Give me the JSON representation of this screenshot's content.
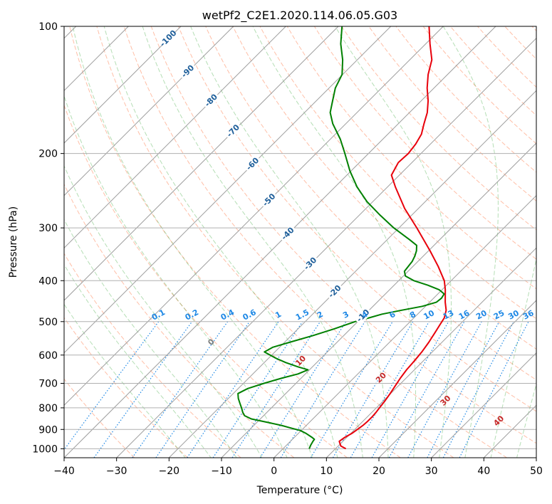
{
  "chart_data": {
    "type": "line",
    "title": "wetPf2_C2E1.2020.114.06.05.G03",
    "xlabel": "Temperature (°C)",
    "ylabel": "Pressure (hPa)",
    "xlim": [
      -40,
      50
    ],
    "ylim": [
      1050,
      100
    ],
    "yscale": "log",
    "skew": 45,
    "grid": true,
    "x_ticks": [
      -40,
      -30,
      -20,
      -10,
      0,
      10,
      20,
      30,
      40,
      50
    ],
    "y_ticks": [
      100,
      200,
      300,
      400,
      500,
      600,
      700,
      800,
      900,
      1000
    ],
    "colors": {
      "temperature": "#e8000b",
      "dewpoint": "#008000",
      "isotherm_labels": "#1f5f9a",
      "mixing_ratio": "#1e88e5",
      "moist_adiabat_labels": "#c62828",
      "zero_label": "#808080"
    },
    "series": [
      {
        "color": "#e8000b",
        "pressure": [
          1000,
          985,
          960,
          940,
          920,
          900,
          880,
          860,
          840,
          820,
          800,
          770,
          740,
          710,
          680,
          650,
          620,
          590,
          560,
          530,
          510,
          490,
          470,
          450,
          420,
          400,
          370,
          340,
          300,
          270,
          240,
          225,
          210,
          200,
          190,
          180,
          170,
          160,
          150,
          140,
          130,
          120,
          110,
          100
        ],
        "temperature": [
          12,
          10.5,
          9.3,
          9.6,
          10.2,
          10.5,
          10.8,
          10.9,
          10.9,
          10.8,
          10.6,
          10.3,
          9.9,
          9.4,
          8.9,
          8.5,
          8.3,
          8.0,
          7.5,
          6.8,
          6.3,
          5.8,
          4.7,
          3.0,
          0.6,
          -1.3,
          -5.2,
          -9.7,
          -16.6,
          -22.6,
          -28.5,
          -31.5,
          -32.6,
          -32.4,
          -32.8,
          -33.6,
          -35.1,
          -36.6,
          -38.7,
          -41.3,
          -43.7,
          -45.8,
          -49.2,
          -52.7
        ]
      },
      {
        "color": "#008000",
        "pressure": [
          1000,
          980,
          960,
          950,
          940,
          920,
          905,
          895,
          880,
          865,
          850,
          835,
          820,
          800,
          780,
          760,
          740,
          720,
          700,
          680,
          665,
          650,
          640,
          625,
          610,
          590,
          575,
          560,
          540,
          520,
          500,
          490,
          480,
          470,
          460,
          450,
          440,
          430,
          420,
          410,
          400,
          390,
          380,
          370,
          360,
          350,
          340,
          330,
          320,
          300,
          280,
          260,
          240,
          220,
          200,
          185,
          170,
          160,
          150,
          140,
          130,
          120,
          110,
          100
        ],
        "dewpoint": [
          5,
          4.6,
          4.3,
          4.2,
          3.4,
          1.5,
          -0.2,
          -2.1,
          -4.8,
          -8.2,
          -11.7,
          -13.6,
          -14.6,
          -15.7,
          -16.9,
          -18.1,
          -19.1,
          -18.2,
          -16.1,
          -13.6,
          -11.4,
          -10.3,
          -12.7,
          -15.9,
          -18.7,
          -22.0,
          -21.3,
          -19.1,
          -15.9,
          -13.1,
          -10.5,
          -8.6,
          -6.8,
          -3.8,
          -0.6,
          1.3,
          1.5,
          1.2,
          -0.6,
          -3.6,
          -7.1,
          -9.6,
          -10.7,
          -10.9,
          -11.1,
          -11.6,
          -12.3,
          -13.3,
          -15.7,
          -21.0,
          -26.0,
          -31.1,
          -35.8,
          -40.2,
          -44.5,
          -48.1,
          -52.5,
          -55.1,
          -56.9,
          -58.8,
          -60.1,
          -62.8,
          -66.2,
          -69.3
        ]
      }
    ],
    "isotherm_labels": [
      "-100",
      "-90",
      "-80",
      "-70",
      "-60",
      "-50",
      "-40",
      "-30",
      "-20",
      "-10"
    ],
    "mixing_ratio_labels": [
      "0.1",
      "0.2",
      "0.4",
      "0.6",
      "1",
      "1.5",
      "2",
      "3",
      "4",
      "6",
      "8",
      "10",
      "13",
      "16",
      "20",
      "25",
      "30",
      "36"
    ],
    "moist_adiabat_labels": [
      "0",
      "10",
      "20",
      "30",
      "40"
    ]
  }
}
